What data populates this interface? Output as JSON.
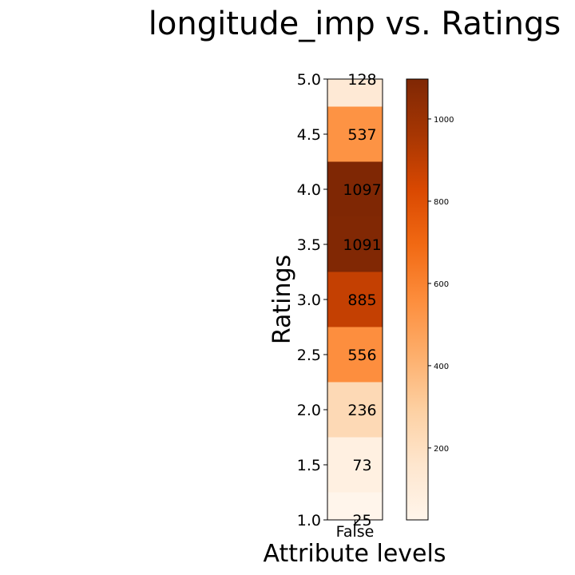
{
  "chart_data": {
    "type": "heatmap",
    "title": "longitude_imp vs. Ratings",
    "xlabel": "Attribute levels",
    "ylabel": "Ratings",
    "x_categories": [
      "False"
    ],
    "y_ticks": [
      "1.0",
      "1.5",
      "2.0",
      "2.5",
      "3.0",
      "3.5",
      "4.0",
      "4.5",
      "5.0"
    ],
    "ylim": [
      1.0,
      5.0
    ],
    "rows": [
      {
        "rating": 1.0,
        "value": 25
      },
      {
        "rating": 1.5,
        "value": 73
      },
      {
        "rating": 2.0,
        "value": 236
      },
      {
        "rating": 2.5,
        "value": 556
      },
      {
        "rating": 3.0,
        "value": 885
      },
      {
        "rating": 3.5,
        "value": 1091
      },
      {
        "rating": 4.0,
        "value": 1097
      },
      {
        "rating": 4.5,
        "value": 537
      },
      {
        "rating": 5.0,
        "value": 128
      }
    ],
    "colorbar": {
      "ticks": [
        200,
        400,
        600,
        800,
        1000
      ],
      "vmin": 25,
      "vmax": 1097,
      "colormap": "Oranges",
      "colors": [
        "#fff5eb",
        "#fee6ce",
        "#fdd0a2",
        "#fdae6b",
        "#fd8d3c",
        "#f16913",
        "#d94801",
        "#a63603",
        "#7f2704"
      ]
    },
    "grid": false,
    "legend": "none"
  }
}
